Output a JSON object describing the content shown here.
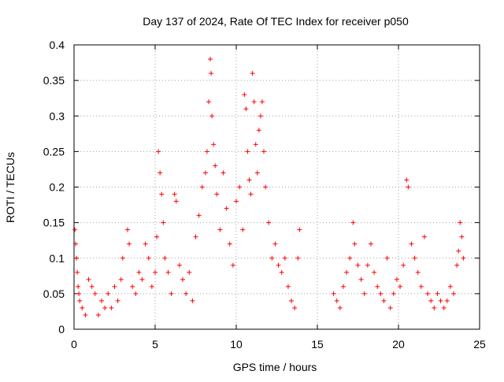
{
  "chart_data": {
    "type": "scatter",
    "title": "Day 137 of 2024, Rate Of TEC Index for receiver p050",
    "xlabel": "GPS time / hours",
    "ylabel": "ROTI / TECUs",
    "xlim": [
      0,
      25
    ],
    "ylim": [
      0,
      0.4
    ],
    "x_ticks": [
      0,
      5,
      10,
      15,
      20,
      25
    ],
    "y_ticks": [
      0,
      0.05,
      0.1,
      0.15,
      0.2,
      0.25,
      0.3,
      0.35,
      0.4
    ],
    "x_tick_labels": [
      "0",
      "5",
      "10",
      "15",
      "20",
      "25"
    ],
    "y_tick_labels": [
      "0",
      "0.05",
      "0.1",
      "0.15",
      "0.2",
      "0.25",
      "0.3",
      "0.35",
      "0.4"
    ],
    "grid": true,
    "legend": "none",
    "marker": "+",
    "series": [
      {
        "color": "#ff0000",
        "x": [
          0.05,
          0.1,
          0.15,
          0.2,
          0.25,
          0.3,
          0.35,
          0.5,
          0.7,
          0.9,
          1.1,
          1.3,
          1.5,
          1.7,
          1.9,
          2.1,
          2.3,
          2.5,
          2.7,
          2.9,
          3.0,
          3.3,
          3.4,
          3.6,
          3.8,
          4.0,
          4.2,
          4.4,
          4.6,
          4.8,
          5.0,
          5.1,
          5.2,
          5.3,
          5.4,
          5.5,
          5.6,
          5.8,
          6.0,
          6.2,
          6.3,
          6.5,
          6.7,
          6.9,
          7.1,
          7.3,
          7.5,
          7.7,
          7.9,
          8.1,
          8.2,
          8.3,
          8.4,
          8.45,
          8.5,
          8.6,
          8.7,
          8.8,
          9.0,
          9.2,
          9.4,
          9.6,
          9.8,
          10.0,
          10.2,
          10.4,
          10.5,
          10.6,
          10.7,
          10.8,
          10.9,
          11.0,
          11.1,
          11.2,
          11.3,
          11.4,
          11.5,
          11.6,
          11.7,
          11.8,
          12.0,
          12.2,
          12.4,
          12.6,
          12.8,
          13.0,
          13.2,
          13.4,
          13.6,
          13.8,
          13.9,
          16.0,
          16.2,
          16.4,
          16.6,
          16.8,
          17.0,
          17.2,
          17.3,
          17.5,
          17.7,
          17.9,
          18.1,
          18.3,
          18.5,
          18.7,
          18.9,
          19.1,
          19.3,
          19.5,
          19.7,
          19.9,
          20.1,
          20.3,
          20.5,
          20.6,
          20.8,
          21.0,
          21.2,
          21.4,
          21.6,
          21.8,
          22.0,
          22.2,
          22.4,
          22.6,
          22.8,
          23.0,
          23.2,
          23.4,
          23.6,
          23.7,
          23.8,
          23.9,
          24.0
        ],
        "y": [
          0.14,
          0.12,
          0.1,
          0.08,
          0.06,
          0.05,
          0.04,
          0.03,
          0.02,
          0.07,
          0.06,
          0.05,
          0.02,
          0.04,
          0.03,
          0.05,
          0.03,
          0.06,
          0.04,
          0.07,
          0.1,
          0.14,
          0.12,
          0.06,
          0.05,
          0.08,
          0.07,
          0.12,
          0.1,
          0.06,
          0.08,
          0.13,
          0.25,
          0.22,
          0.19,
          0.15,
          0.1,
          0.08,
          0.05,
          0.19,
          0.18,
          0.09,
          0.07,
          0.05,
          0.08,
          0.04,
          0.13,
          0.16,
          0.2,
          0.22,
          0.25,
          0.32,
          0.38,
          0.36,
          0.3,
          0.26,
          0.23,
          0.19,
          0.14,
          0.22,
          0.17,
          0.12,
          0.09,
          0.18,
          0.2,
          0.14,
          0.33,
          0.31,
          0.25,
          0.21,
          0.19,
          0.36,
          0.32,
          0.26,
          0.22,
          0.28,
          0.3,
          0.32,
          0.25,
          0.2,
          0.15,
          0.1,
          0.12,
          0.09,
          0.08,
          0.1,
          0.06,
          0.04,
          0.03,
          0.1,
          0.14,
          0.05,
          0.04,
          0.03,
          0.06,
          0.08,
          0.1,
          0.15,
          0.12,
          0.09,
          0.07,
          0.05,
          0.09,
          0.12,
          0.08,
          0.06,
          0.05,
          0.04,
          0.1,
          0.03,
          0.05,
          0.07,
          0.06,
          0.09,
          0.21,
          0.2,
          0.12,
          0.1,
          0.08,
          0.06,
          0.13,
          0.05,
          0.04,
          0.03,
          0.05,
          0.04,
          0.03,
          0.04,
          0.06,
          0.05,
          0.09,
          0.11,
          0.15,
          0.13,
          0.1
        ]
      }
    ]
  }
}
